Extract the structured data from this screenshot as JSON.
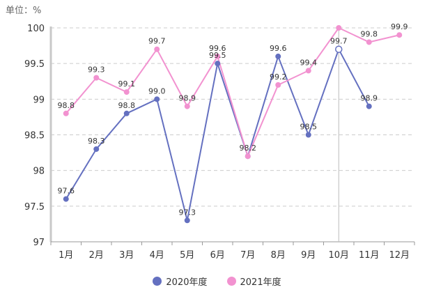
{
  "unit_label": "单位：%",
  "chart_data": {
    "type": "line",
    "title": "",
    "xlabel": "",
    "ylabel": "",
    "categories": [
      "1月",
      "2月",
      "3月",
      "4月",
      "5月",
      "6月",
      "7月",
      "8月",
      "9月",
      "10月",
      "11月",
      "12月"
    ],
    "ylim": [
      97,
      100
    ],
    "yticks": [
      97,
      97.5,
      98,
      98.5,
      99,
      99.5,
      100
    ],
    "ytick_labels": [
      "97",
      "97.5",
      "98",
      "98.5",
      "99",
      "99.5",
      "100"
    ],
    "grid": true,
    "legend_position": "bottom-center",
    "series": [
      {
        "name": "2020年度",
        "color": "#6470c0",
        "values": [
          97.6,
          98.3,
          98.8,
          99.0,
          97.3,
          99.5,
          98.2,
          99.6,
          98.5,
          99.7,
          98.9,
          null
        ],
        "labels": [
          "97.6",
          "98.3",
          "98.8",
          "99.0",
          "97.3",
          "99.5",
          "98.2",
          "99.6",
          "98.5",
          "99.7",
          "98.9",
          ""
        ]
      },
      {
        "name": "2021年度",
        "color": "#f292d0",
        "values": [
          98.8,
          99.3,
          99.1,
          99.7,
          98.9,
          99.6,
          98.2,
          99.2,
          99.4,
          100,
          99.8,
          99.9
        ],
        "labels": [
          "98.8",
          "99.3",
          "99.1",
          "99.7",
          "98.9",
          "99.6",
          "",
          "99.2",
          "99.4",
          "",
          "99.8",
          "99.9"
        ]
      }
    ],
    "highlight": {
      "category": "10月",
      "series": "2020年度"
    }
  }
}
